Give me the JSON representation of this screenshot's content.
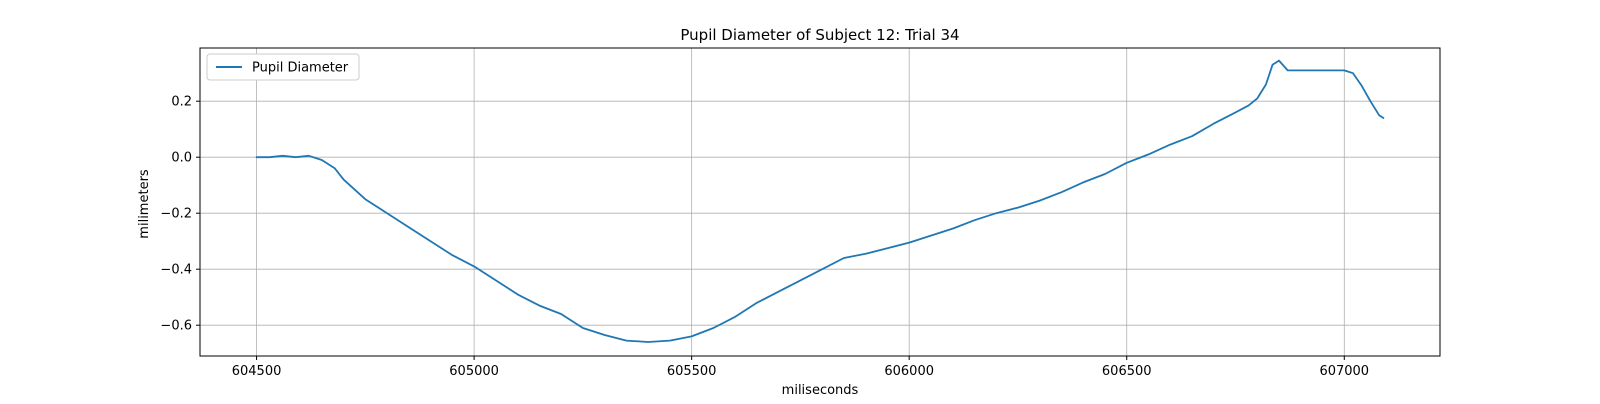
{
  "chart_data": {
    "type": "line",
    "title": "Pupil Diameter of Subject 12: Trial 34",
    "xlabel": "miliseconds",
    "ylabel": "milimeters",
    "xlim": [
      604370,
      607220
    ],
    "ylim": [
      -0.71,
      0.39
    ],
    "xticks": [
      604500,
      605000,
      605500,
      606000,
      606500,
      607000
    ],
    "yticks": [
      -0.6,
      -0.4,
      -0.2,
      0.0,
      0.2
    ],
    "xtick_labels": [
      "604500",
      "605000",
      "605500",
      "606000",
      "606500",
      "607000"
    ],
    "ytick_labels": [
      "−0.6",
      "−0.4",
      "−0.2",
      "0.0",
      "0.2"
    ],
    "grid": true,
    "legend_position": "upper-left",
    "series": [
      {
        "name": "Pupil Diameter",
        "color": "#1f77b4",
        "x": [
          604500,
          604530,
          604560,
          604590,
          604620,
          604650,
          604680,
          604700,
          604750,
          604800,
          604850,
          604900,
          604950,
          605000,
          605050,
          605100,
          605150,
          605200,
          605250,
          605300,
          605350,
          605400,
          605450,
          605500,
          605550,
          605600,
          605650,
          605700,
          605750,
          605800,
          605850,
          605900,
          605950,
          606000,
          606050,
          606100,
          606150,
          606200,
          606250,
          606300,
          606350,
          606400,
          606450,
          606500,
          606550,
          606600,
          606650,
          606700,
          606750,
          606780,
          606800,
          606820,
          606835,
          606850,
          606870,
          606900,
          606950,
          607000,
          607020,
          607040,
          607060,
          607080,
          607090
        ],
        "y": [
          0.0,
          0.0,
          0.005,
          0.0,
          0.005,
          -0.01,
          -0.04,
          -0.08,
          -0.15,
          -0.2,
          -0.25,
          -0.3,
          -0.35,
          -0.39,
          -0.44,
          -0.49,
          -0.53,
          -0.56,
          -0.61,
          -0.635,
          -0.655,
          -0.66,
          -0.655,
          -0.64,
          -0.61,
          -0.57,
          -0.52,
          -0.48,
          -0.44,
          -0.4,
          -0.36,
          -0.345,
          -0.325,
          -0.305,
          -0.28,
          -0.255,
          -0.225,
          -0.2,
          -0.18,
          -0.155,
          -0.125,
          -0.09,
          -0.06,
          -0.02,
          0.01,
          0.045,
          0.075,
          0.12,
          0.16,
          0.185,
          0.21,
          0.26,
          0.33,
          0.345,
          0.31,
          0.31,
          0.31,
          0.31,
          0.3,
          0.255,
          0.2,
          0.15,
          0.14
        ]
      }
    ]
  }
}
